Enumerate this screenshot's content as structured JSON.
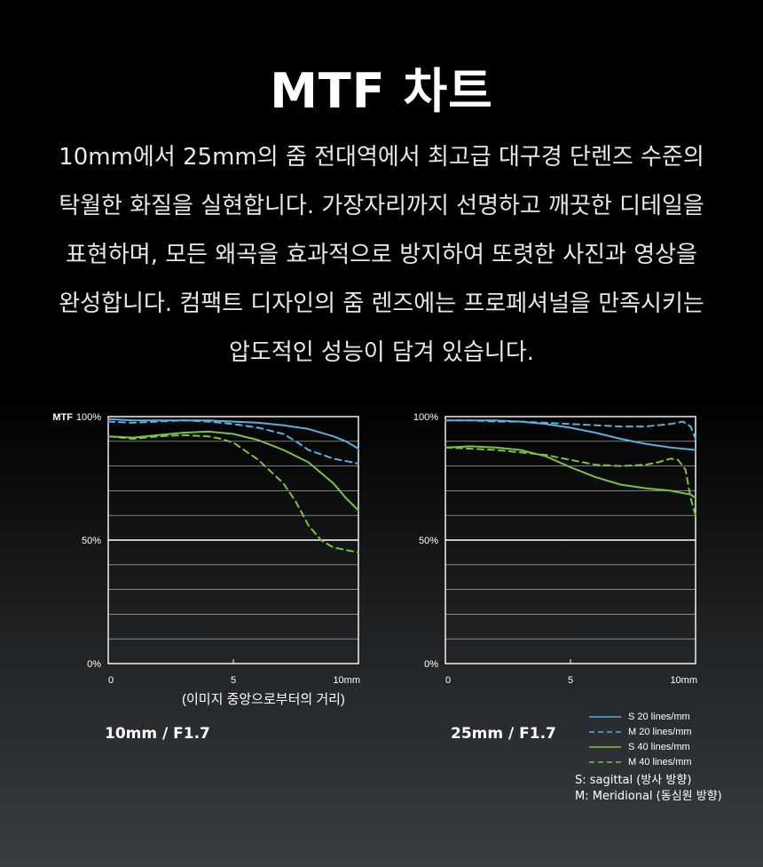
{
  "page": {
    "title": "MTF 차트",
    "description": [
      "10mm에서 25mm의 줌 전대역에서 최고급 대구경 단렌즈 수준의",
      "탁월한 화질을 실현합니다. 가장자리까지 선명하고 깨끗한 디테일을",
      "표현하며, 모든 왜곡을 효과적으로 방지하여 또렷한 사진과 영상을",
      "완성합니다. 컴팩트 디자인의 줌 렌즈에는 프로페셔널을 만족시키는",
      "압도적인 성능이 담겨 있습니다."
    ],
    "x_caption": "(이미지 중앙으로부터의 거리)",
    "legend_note": [
      "S: sagittal (방사 방향)",
      "M: Meridional (동심원 방향)"
    ]
  },
  "colors": {
    "s20": "#5aaee0",
    "m20": "#5aaee0",
    "s40": "#7cc242",
    "m40": "#7cc242",
    "grid": "#ffffff"
  },
  "chart_data": [
    {
      "type": "line",
      "title": "10mm / F1.7",
      "ylabel": "MTF",
      "xlim": [
        0,
        10
      ],
      "ylim": [
        0,
        100
      ],
      "x_ticks": [
        "0",
        "5",
        "10mm"
      ],
      "y_ticks": [
        "100%",
        "50%",
        "0%"
      ],
      "grid": true,
      "series": [
        {
          "name": "S 20 lines/mm",
          "key": "s20",
          "dashed": false,
          "x": [
            0,
            1,
            2,
            3,
            4,
            5,
            6,
            7,
            8,
            9,
            9.5,
            10
          ],
          "y": [
            99,
            98.5,
            98.5,
            98.5,
            98.5,
            98,
            97.5,
            96.5,
            95,
            92,
            90,
            87
          ]
        },
        {
          "name": "M 20 lines/mm",
          "key": "m20",
          "dashed": true,
          "x": [
            0,
            1,
            2,
            3,
            4,
            5,
            6,
            7,
            7.5,
            8,
            9,
            10
          ],
          "y": [
            98,
            97.5,
            98,
            98.5,
            98,
            97,
            95.5,
            93,
            90,
            86.5,
            83,
            81
          ]
        },
        {
          "name": "S 40 lines/mm",
          "key": "s40",
          "dashed": false,
          "x": [
            0,
            1,
            2,
            3,
            4,
            5,
            6,
            7,
            8,
            9,
            9.5,
            10
          ],
          "y": [
            92,
            91.5,
            92.5,
            93.5,
            94,
            93,
            90.5,
            86.5,
            81.5,
            73,
            67,
            62
          ]
        },
        {
          "name": "M 40 lines/mm",
          "key": "m40",
          "dashed": true,
          "x": [
            0,
            1,
            2,
            3,
            4,
            4.5,
            5,
            6,
            7,
            7.5,
            8,
            8.5,
            9,
            10
          ],
          "y": [
            92,
            91,
            92,
            92.5,
            92,
            91,
            89.5,
            82.5,
            73,
            65.5,
            56,
            50,
            47,
            45
          ]
        }
      ]
    },
    {
      "type": "line",
      "title": "25mm / F1.7",
      "xlim": [
        0,
        10
      ],
      "ylim": [
        0,
        100
      ],
      "x_ticks": [
        "0",
        "5",
        "10mm"
      ],
      "y_ticks": [
        "100%",
        "50%",
        "0%"
      ],
      "grid": true,
      "series": [
        {
          "name": "S 20 lines/mm",
          "key": "s20",
          "dashed": false,
          "x": [
            0,
            1,
            2,
            3,
            4,
            5,
            6,
            7,
            8,
            9,
            10
          ],
          "y": [
            98.5,
            98.5,
            98.5,
            98,
            97,
            95.5,
            93.5,
            91,
            89,
            87.5,
            86.5
          ]
        },
        {
          "name": "M 20 lines/mm",
          "key": "m20",
          "dashed": true,
          "x": [
            0,
            1,
            2,
            3,
            4,
            5,
            6,
            7,
            8,
            9,
            9.5,
            9.8,
            10
          ],
          "y": [
            98.5,
            98.5,
            98,
            98,
            97.5,
            97,
            96.5,
            96,
            96,
            97,
            98,
            96,
            91
          ]
        },
        {
          "name": "S 40 lines/mm",
          "key": "s40",
          "dashed": false,
          "x": [
            0,
            1,
            2,
            3,
            4,
            5,
            6,
            7,
            8,
            9,
            9.5,
            9.8,
            10
          ],
          "y": [
            87.5,
            88,
            87.5,
            86.5,
            84,
            79.5,
            75.5,
            72.5,
            71,
            70,
            69,
            68.5,
            67
          ]
        },
        {
          "name": "M 40 lines/mm",
          "key": "m40",
          "dashed": true,
          "x": [
            0,
            1,
            2,
            3,
            4,
            5,
            6,
            7,
            8,
            8.5,
            9,
            9.3,
            9.6,
            9.8,
            10
          ],
          "y": [
            87.5,
            87,
            86.5,
            85.5,
            84.5,
            82.5,
            80.5,
            80,
            80.5,
            81.5,
            83,
            82.5,
            78.5,
            67,
            60
          ]
        }
      ]
    }
  ]
}
